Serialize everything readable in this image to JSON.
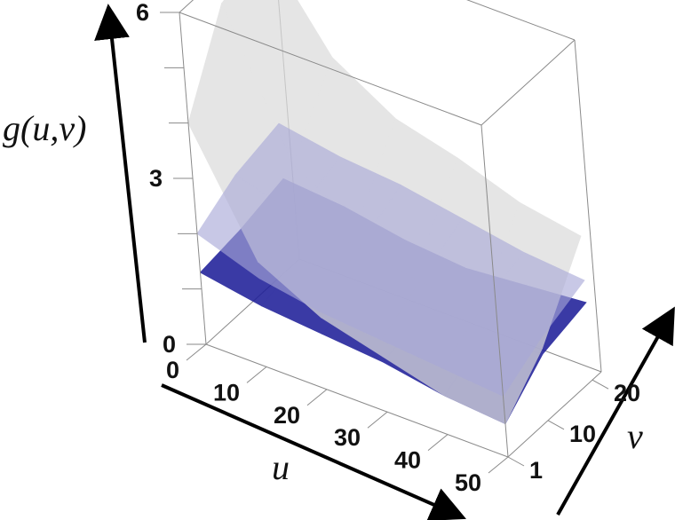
{
  "chart_data": {
    "type": "surface3d",
    "title": "",
    "axes": {
      "x": {
        "label": "u",
        "ticks": [
          "0",
          "10",
          "20",
          "30",
          "40",
          "50"
        ],
        "range": [
          0,
          50
        ]
      },
      "y": {
        "label": "v",
        "ticks": [
          "1",
          "10",
          "20"
        ],
        "range": [
          1,
          22
        ]
      },
      "z": {
        "label": "g(u,v)",
        "ticks": [
          "0",
          "3",
          "6"
        ],
        "range": [
          0,
          6
        ]
      }
    },
    "grid": false,
    "series": [
      {
        "color": "#1f1f99",
        "opacity": 0.88,
        "u": [
          0,
          10,
          20,
          30,
          40,
          50
        ],
        "v": [
          1,
          10,
          20
        ],
        "g": [
          [
            1.3,
            1.4,
            1.6
          ],
          [
            1.1,
            1.3,
            1.5
          ],
          [
            1.0,
            1.2,
            1.3
          ],
          [
            0.9,
            1.1,
            1.2
          ],
          [
            0.7,
            1.1,
            1.3
          ],
          [
            0.6,
            1.2,
            1.4
          ]
        ]
      },
      {
        "color": "#dcdcdc",
        "opacity": 0.72,
        "u": [
          0,
          10,
          20,
          30,
          40,
          50
        ],
        "v": [
          1,
          10,
          20
        ],
        "g": [
          [
            4.0,
            5.5,
            5.8
          ],
          [
            1.9,
            3.0,
            4.2
          ],
          [
            1.3,
            2.3,
            3.5
          ],
          [
            1.0,
            2.0,
            3.2
          ],
          [
            0.7,
            1.6,
            2.8
          ],
          [
            0.6,
            1.3,
            2.6
          ]
        ]
      },
      {
        "color": "#a8a8d8",
        "opacity": 0.62,
        "u": [
          0,
          10,
          20,
          30,
          40,
          50
        ],
        "v": [
          1,
          10,
          20
        ],
        "g": [
          [
            2.0,
            2.4,
            2.6
          ],
          [
            1.6,
            2.1,
            2.4
          ],
          [
            1.4,
            1.9,
            2.3
          ],
          [
            1.3,
            1.7,
            2.1
          ],
          [
            1.2,
            1.6,
            1.9
          ],
          [
            1.1,
            1.5,
            1.8
          ]
        ]
      }
    ]
  }
}
